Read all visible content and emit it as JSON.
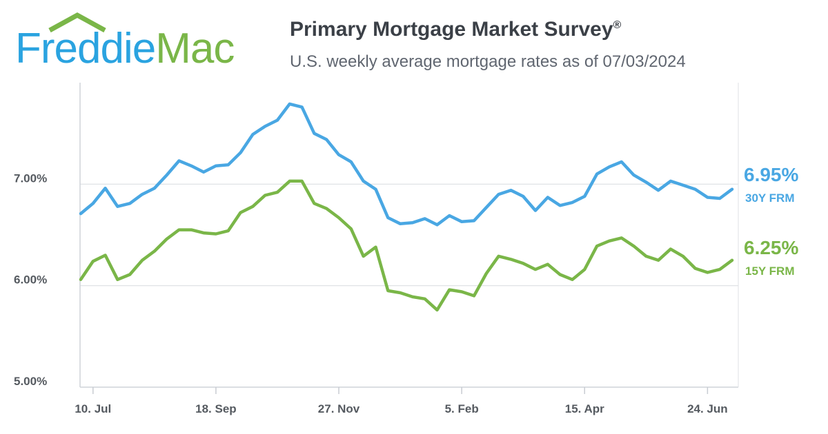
{
  "logo": {
    "text_part1": "Freddie",
    "text_part2": "Mac",
    "color_part1": "#2aa3e0",
    "color_part2": "#7ab648"
  },
  "title": "Primary Mortgage Market Survey",
  "title_mark": "®",
  "subtitle": "U.S. weekly average mortgage rates as of 07/03/2024",
  "chart_data": {
    "type": "line",
    "title": "Primary Mortgage Market Survey®",
    "subtitle": "U.S. weekly average mortgage rates as of 07/03/2024",
    "xlabel": "",
    "ylabel": "",
    "ylim": [
      5.0,
      8.0
    ],
    "grid": true,
    "y_ticks": [
      5.0,
      6.0,
      7.0
    ],
    "y_tick_labels": [
      "5.00%",
      "6.00%",
      "7.00%"
    ],
    "x_tick_labels": [
      "10. Jul",
      "18. Sep",
      "27. Nov",
      "5. Feb",
      "15. Apr",
      "24. Jun"
    ],
    "x_tick_week_index": [
      1,
      11,
      21,
      31,
      41,
      51
    ],
    "series": [
      {
        "name": "30Y FRM",
        "end_value_label": "6.95%",
        "color": "#49a7e3",
        "values": [
          6.71,
          6.81,
          6.96,
          6.78,
          6.81,
          6.9,
          6.96,
          7.09,
          7.23,
          7.18,
          7.12,
          7.18,
          7.19,
          7.31,
          7.49,
          7.57,
          7.63,
          7.79,
          7.76,
          7.5,
          7.44,
          7.29,
          7.22,
          7.03,
          6.95,
          6.67,
          6.61,
          6.62,
          6.66,
          6.6,
          6.69,
          6.63,
          6.64,
          6.77,
          6.9,
          6.94,
          6.88,
          6.74,
          6.87,
          6.79,
          6.82,
          6.88,
          7.1,
          7.17,
          7.22,
          7.09,
          7.02,
          6.94,
          7.03,
          6.99,
          6.95,
          6.87,
          6.86,
          6.95
        ]
      },
      {
        "name": "15Y FRM",
        "end_value_label": "6.25%",
        "color": "#7ab648",
        "values": [
          6.06,
          6.24,
          6.3,
          6.06,
          6.11,
          6.25,
          6.34,
          6.46,
          6.55,
          6.55,
          6.52,
          6.51,
          6.54,
          6.72,
          6.78,
          6.89,
          6.92,
          7.03,
          7.03,
          6.81,
          6.76,
          6.67,
          6.56,
          6.29,
          6.38,
          5.95,
          5.93,
          5.89,
          5.87,
          5.76,
          5.96,
          5.94,
          5.9,
          6.12,
          6.29,
          6.26,
          6.22,
          6.16,
          6.21,
          6.11,
          6.06,
          6.16,
          6.39,
          6.44,
          6.47,
          6.39,
          6.29,
          6.25,
          6.36,
          6.29,
          6.17,
          6.13,
          6.16,
          6.25
        ]
      }
    ]
  }
}
